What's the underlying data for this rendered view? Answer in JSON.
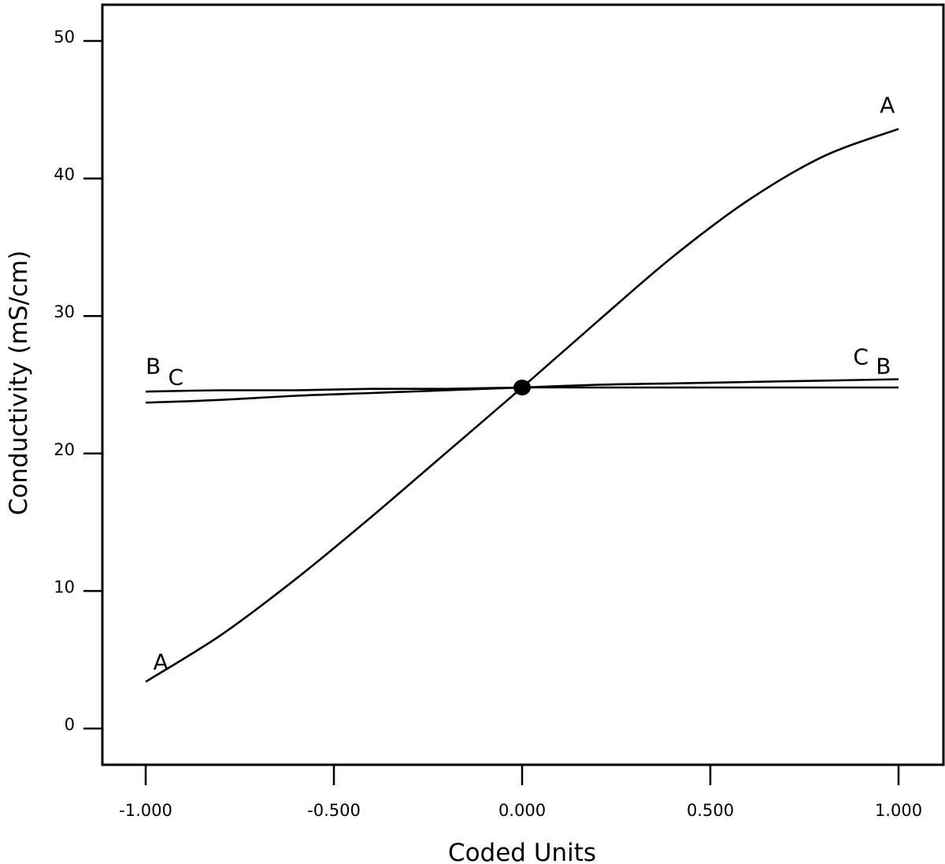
{
  "chart_data": {
    "type": "line",
    "title": "",
    "xlabel": "Coded Units",
    "ylabel": "Conductivity (mS/cm)",
    "xlim": [
      -1.0,
      1.0
    ],
    "ylim": [
      0,
      50
    ],
    "x_ticks": [
      "-1.000",
      "-0.500",
      "0.000",
      "0.500",
      "1.000"
    ],
    "x_tick_values": [
      -1.0,
      -0.5,
      0.0,
      0.5,
      1.0
    ],
    "y_ticks": [
      "0",
      "10",
      "20",
      "30",
      "40",
      "50"
    ],
    "y_tick_values": [
      0,
      10,
      20,
      30,
      40,
      50
    ],
    "grid": false,
    "x": [
      -1.0,
      -0.8,
      -0.6,
      -0.4,
      -0.2,
      0.0,
      0.2,
      0.4,
      0.6,
      0.8,
      1.0
    ],
    "series": [
      {
        "name": "A",
        "values": [
          3.4,
          6.8,
          10.9,
          15.4,
          20.1,
          24.8,
          29.6,
          34.3,
          38.4,
          41.6,
          43.6
        ]
      },
      {
        "name": "B",
        "values": [
          24.5,
          24.6,
          24.6,
          24.7,
          24.7,
          24.8,
          24.8,
          24.8,
          24.8,
          24.8,
          24.8
        ]
      },
      {
        "name": "C",
        "values": [
          23.7,
          23.9,
          24.2,
          24.4,
          24.6,
          24.8,
          25.0,
          25.1,
          25.2,
          25.3,
          25.4
        ]
      }
    ],
    "reference_point": {
      "x": 0.0,
      "y": 24.8
    },
    "series_labels": [
      {
        "text": "A",
        "x": -0.96,
        "y": 4.3
      },
      {
        "text": "A",
        "x": 0.97,
        "y": 44.8
      },
      {
        "text": "B",
        "x": -0.98,
        "y": 25.8
      },
      {
        "text": "C",
        "x": -0.92,
        "y": 25.0
      },
      {
        "text": "C",
        "x": 0.9,
        "y": 26.5
      },
      {
        "text": "B",
        "x": 0.96,
        "y": 25.8
      }
    ],
    "colors": {
      "line": "#000000",
      "background": "#ffffff"
    }
  }
}
